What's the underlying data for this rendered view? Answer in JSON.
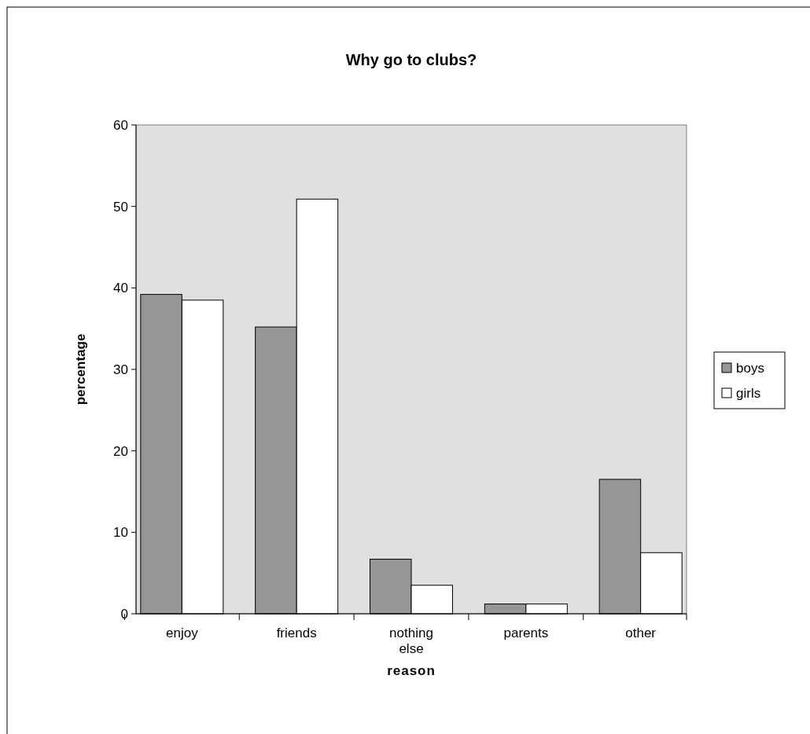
{
  "chart_data": {
    "type": "bar",
    "title": "Why go to clubs?",
    "xlabel": "reason",
    "ylabel": "percentage",
    "categories": [
      "enjoy",
      "friends",
      "nothing else",
      "parents",
      "other"
    ],
    "series": [
      {
        "name": "boys",
        "color": "#969696",
        "values": [
          39.2,
          35.2,
          6.7,
          1.2,
          16.5
        ]
      },
      {
        "name": "girls",
        "color": "#ffffff",
        "values": [
          38.5,
          50.9,
          3.5,
          1.2,
          7.5
        ]
      }
    ],
    "ylim": [
      0,
      60
    ],
    "yticks": [
      0,
      10,
      20,
      30,
      40,
      50,
      60
    ],
    "legend": "right"
  }
}
